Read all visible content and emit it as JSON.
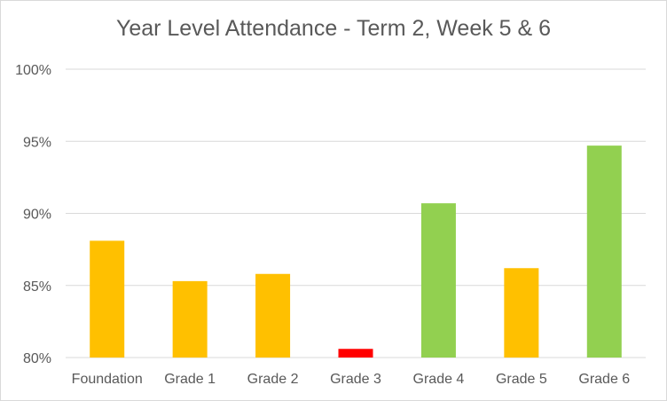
{
  "chart_data": {
    "type": "bar",
    "title": "Year Level Attendance - Term 2, Week 5 & 6",
    "categories": [
      "Foundation",
      "Grade 1",
      "Grade 2",
      "Grade 3",
      "Grade 4",
      "Grade 5",
      "Grade 6"
    ],
    "values": [
      88.1,
      85.3,
      85.8,
      80.6,
      90.7,
      86.2,
      94.7
    ],
    "bar_colors": [
      "#FFC000",
      "#FFC000",
      "#FFC000",
      "#FF0000",
      "#92D050",
      "#FFC000",
      "#92D050"
    ],
    "ylim": [
      80,
      100
    ],
    "yticks": [
      80,
      85,
      90,
      95,
      100
    ],
    "ytick_labels": [
      "80%",
      "85%",
      "90%",
      "95%",
      "100%"
    ],
    "grid": true,
    "legend": "none",
    "xlabel": "",
    "ylabel": ""
  }
}
